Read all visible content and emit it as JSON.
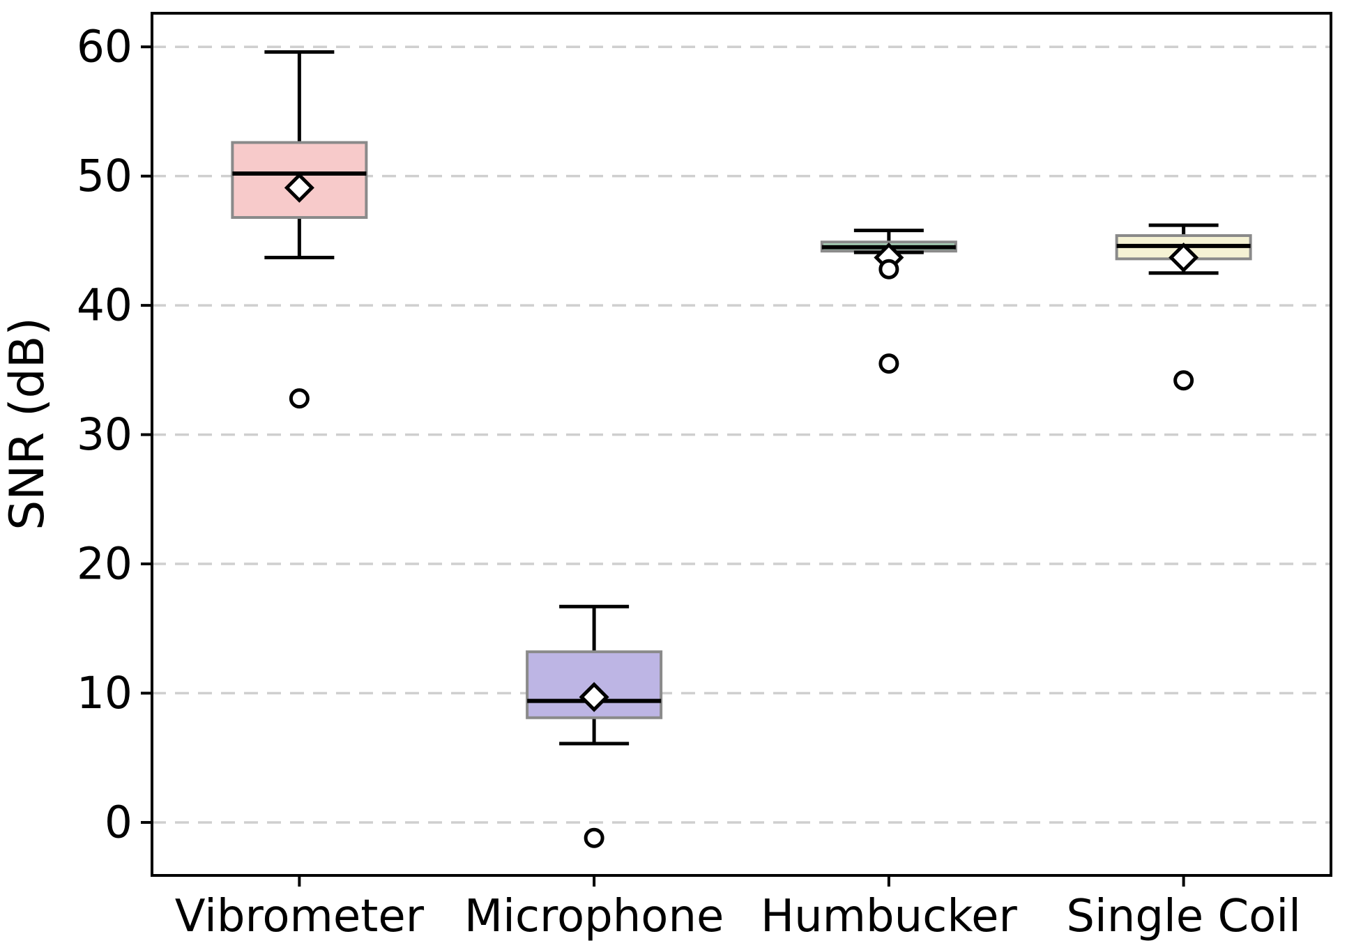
{
  "chart_data": {
    "type": "box",
    "title": "",
    "xlabel": "",
    "ylabel": "SNR (dB)",
    "categories": [
      "Vibrometer",
      "Microphone",
      "Humbucker",
      "Single Coil"
    ],
    "yticks": [
      0,
      10,
      20,
      30,
      40,
      50,
      60
    ],
    "ylim": [
      -4.1,
      62.6
    ],
    "grid": "horizontal-dashed",
    "legend": "none",
    "series": [
      {
        "name": "Vibrometer",
        "box_color": "#f7caca",
        "whisker_low": 43.7,
        "q1": 46.8,
        "median": 50.2,
        "q3": 52.6,
        "whisker_high": 59.6,
        "mean": 49.1,
        "outliers": [
          32.8
        ]
      },
      {
        "name": "Microphone",
        "box_color": "#bdb5e4",
        "whisker_low": 6.1,
        "q1": 8.1,
        "median": 9.4,
        "q3": 13.2,
        "whisker_high": 16.7,
        "mean": 9.7,
        "outliers": [
          -1.2
        ]
      },
      {
        "name": "Humbucker",
        "box_color": "#aedcc0",
        "whisker_low": 44.1,
        "q1": 44.2,
        "median": 44.5,
        "q3": 44.9,
        "whisker_high": 45.8,
        "mean": 43.7,
        "outliers": [
          42.8,
          35.5
        ]
      },
      {
        "name": "Single Coil",
        "box_color": "#f5f2d4",
        "whisker_low": 42.5,
        "q1": 43.6,
        "median": 44.6,
        "q3": 45.4,
        "whisker_high": 46.2,
        "mean": 43.7,
        "outliers": [
          34.2
        ]
      }
    ],
    "style_colors": {
      "box_edge": "#8a8a8a",
      "line": "#000000",
      "grid": "#cfcfcf",
      "mean_marker_fill": "#ffffff",
      "outlier_fill": "#ffffff",
      "background": "#ffffff"
    }
  }
}
